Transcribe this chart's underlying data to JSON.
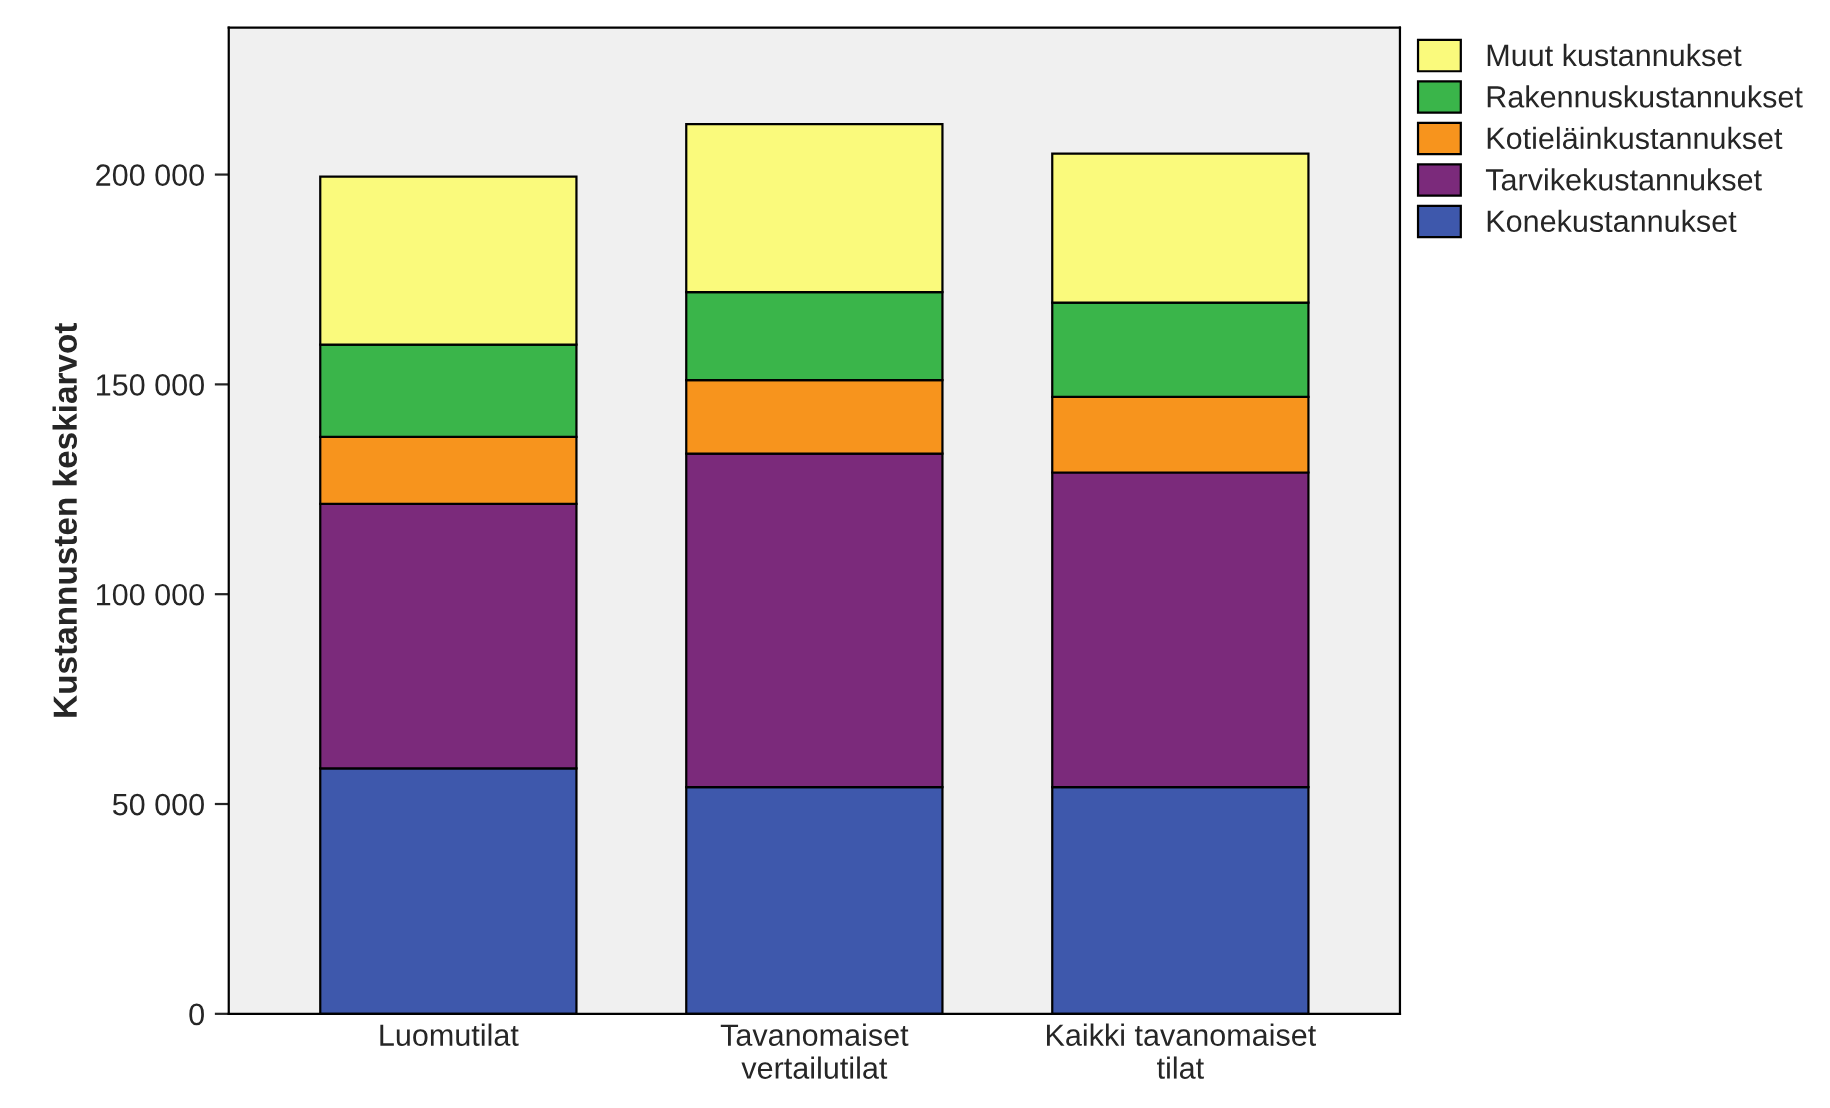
{
  "chart_data": {
    "type": "bar",
    "stacked": true,
    "ylabel": "Kustannusten keskiarvot",
    "categories": [
      "Luomutilat",
      "Tavanomaiset\nvertailutilat",
      "Kaikki tavanomaiset\ntilat"
    ],
    "series": [
      {
        "name": "Konekustannukset",
        "color": "#3e58ac",
        "values": [
          58500,
          54000,
          54000
        ]
      },
      {
        "name": "Tarvikekustannukset",
        "color": "#7b2a7b",
        "values": [
          63000,
          79500,
          75000
        ]
      },
      {
        "name": "Kotieläinkustannukset",
        "color": "#f7941d",
        "values": [
          16000,
          17500,
          18000
        ]
      },
      {
        "name": "Rakennuskustannukset",
        "color": "#3ab54a",
        "values": [
          22000,
          21000,
          22500
        ]
      },
      {
        "name": "Muut kustannukset",
        "color": "#fafa7c",
        "values": [
          40000,
          40000,
          35500
        ]
      }
    ],
    "ylim": [
      0,
      235000
    ],
    "yticks": [
      {
        "value": 0,
        "label": "0"
      },
      {
        "value": 50000,
        "label": "50 000"
      },
      {
        "value": 100000,
        "label": "100 000"
      },
      {
        "value": 150000,
        "label": "150 000"
      },
      {
        "value": 200000,
        "label": "200 000"
      }
    ],
    "grid": false,
    "legend": "top right"
  }
}
